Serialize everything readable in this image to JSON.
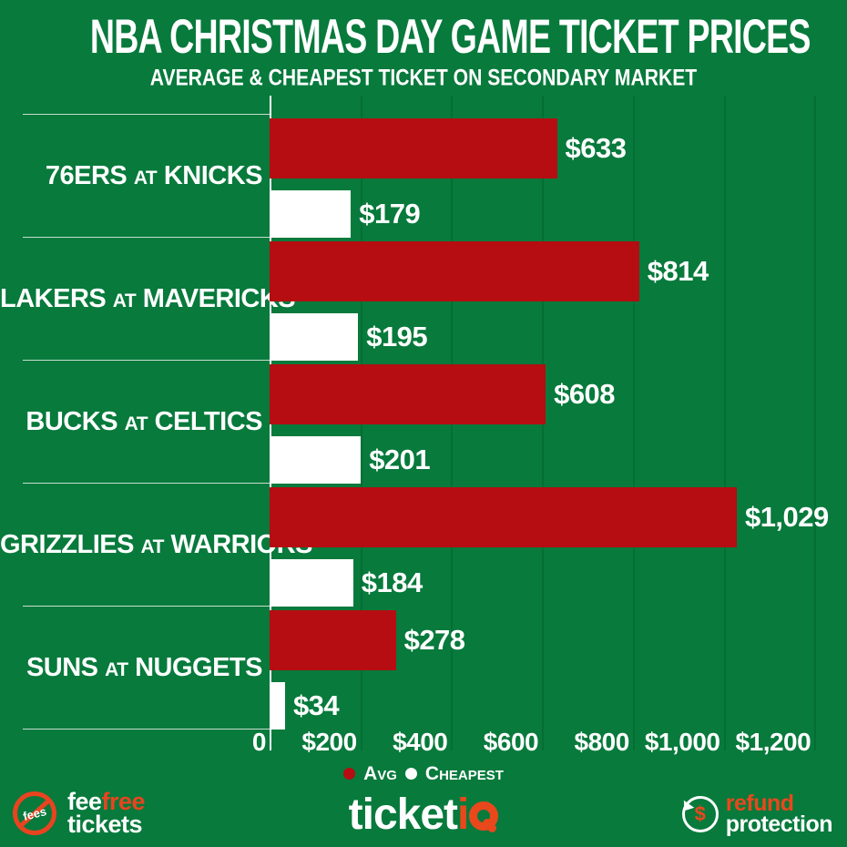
{
  "header": {
    "title": "NBA CHRISTMAS DAY GAME TICKET PRICES",
    "subtitle": "AVERAGE & CHEAPEST TICKET ON SECONDARY MARKET"
  },
  "chart_data": {
    "type": "bar",
    "orientation": "horizontal",
    "title": "NBA CHRISTMAS DAY GAME TICKET PRICES",
    "subtitle": "AVERAGE & CHEAPEST TICKET ON SECONDARY MARKET",
    "categories": [
      "76ERS AT KNICKS",
      "LAKERS AT MAVERICKS",
      "BUCKS AT CELTICS",
      "GRIZZLIES AT WARRIORS",
      "SUNS AT NUGGETS"
    ],
    "series": [
      {
        "name": "Avg",
        "color": "#b50d11",
        "values": [
          633,
          814,
          608,
          1029,
          278
        ]
      },
      {
        "name": "Cheapest",
        "color": "#ffffff",
        "values": [
          179,
          195,
          201,
          184,
          34
        ]
      }
    ],
    "value_labels": {
      "avg": [
        "$633",
        "$814",
        "$608",
        "$1,029",
        "$278"
      ],
      "cheapest": [
        "$179",
        "$195",
        "$201",
        "$184",
        "$34"
      ]
    },
    "x_ticks": {
      "values": [
        0,
        200,
        400,
        600,
        800,
        1000,
        1200
      ],
      "labels": [
        "0",
        "$200",
        "$400",
        "$600",
        "$800",
        "$1,000",
        "$1,200"
      ]
    },
    "xlim": [
      0,
      1200
    ],
    "grid": "vertical",
    "legend_position": "bottom"
  },
  "legend": {
    "avg": "Avg",
    "cheapest": "Cheapest"
  },
  "footer": {
    "fee_free": {
      "badge": "fees",
      "word1": "fee",
      "word2": "free",
      "word3": "tickets"
    },
    "ticketiq": {
      "word1": "ticket",
      "word2": "i"
    },
    "refund": {
      "symbol": "$",
      "word1": "refund",
      "word2": "protection"
    }
  },
  "colors": {
    "background": "#077a3c",
    "gridline": "#046e34",
    "avg_red": "#b50d11",
    "cheapest_white": "#ffffff",
    "accent_orange": "#e8481c",
    "separator": "#e9f0ea"
  }
}
